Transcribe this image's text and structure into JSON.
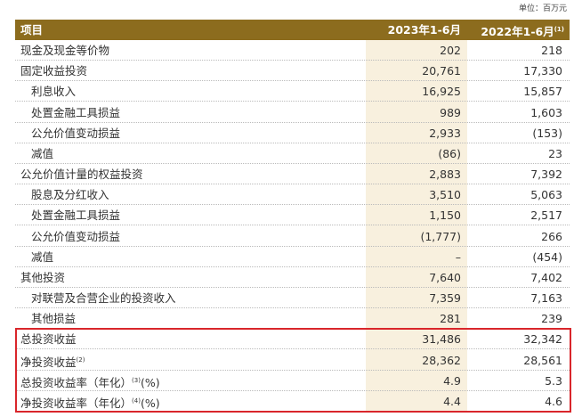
{
  "unit": "单位：百万元",
  "table": {
    "header": {
      "item": "项目",
      "col1": "2023年1-6月",
      "col2": "2022年1-6月",
      "col2_note": "(1)"
    },
    "rows": [
      {
        "label": "现金及现金等价物",
        "indent": 0,
        "v1": "202",
        "v2": "218"
      },
      {
        "label": "固定收益投资",
        "indent": 0,
        "v1": "20,761",
        "v2": "17,330"
      },
      {
        "label": "利息收入",
        "indent": 1,
        "v1": "16,925",
        "v2": "15,857"
      },
      {
        "label": "处置金融工具损益",
        "indent": 1,
        "v1": "989",
        "v2": "1,603"
      },
      {
        "label": "公允价值变动损益",
        "indent": 1,
        "v1": "2,933",
        "v2": "(153)"
      },
      {
        "label": "减值",
        "indent": 1,
        "v1": "(86)",
        "v2": "23"
      },
      {
        "label": "公允价值计量的权益投资",
        "indent": 0,
        "v1": "2,883",
        "v2": "7,392"
      },
      {
        "label": "股息及分红收入",
        "indent": 1,
        "v1": "3,510",
        "v2": "5,063"
      },
      {
        "label": "处置金融工具损益",
        "indent": 1,
        "v1": "1,150",
        "v2": "2,517"
      },
      {
        "label": "公允价值变动损益",
        "indent": 1,
        "v1": "(1,777)",
        "v2": "266"
      },
      {
        "label": "减值",
        "indent": 1,
        "v1": "–",
        "v2": "(454)"
      },
      {
        "label": "其他投资",
        "indent": 0,
        "v1": "7,640",
        "v2": "7,402"
      },
      {
        "label": "对联营及合营企业的投资收入",
        "indent": 1,
        "v1": "7,359",
        "v2": "7,163"
      },
      {
        "label": "其他损益",
        "indent": 1,
        "v1": "281",
        "v2": "239"
      },
      {
        "label": "总投资收益",
        "indent": 0,
        "v1": "31,486",
        "v2": "32,342"
      },
      {
        "label": "净投资收益",
        "note": "(2)",
        "indent": 0,
        "v1": "28,362",
        "v2": "28,561"
      },
      {
        "label": "总投资收益率（年化）",
        "note": "(3)",
        "suffix": "(%)",
        "indent": 0,
        "v1": "4.9",
        "v2": "5.3"
      },
      {
        "label": "净投资收益率（年化）",
        "note": "(4)",
        "suffix": "(%)",
        "indent": 0,
        "v1": "4.4",
        "v2": "4.6"
      }
    ],
    "highlight_from": 14
  }
}
